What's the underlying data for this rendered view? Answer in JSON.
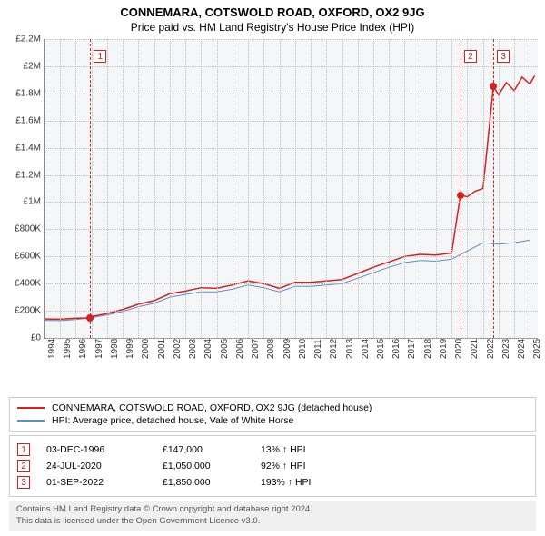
{
  "title": "CONNEMARA, COTSWOLD ROAD, OXFORD, OX2 9JG",
  "subtitle": "Price paid vs. HM Land Registry's House Price Index (HPI)",
  "chart": {
    "type": "line",
    "background_color": "#f5f6f7",
    "grid_color": "#bbbbbb",
    "axis_color": "#888888",
    "ylim": [
      0,
      2200000
    ],
    "ytick_step": 200000,
    "yticks": [
      "£0",
      "£200K",
      "£400K",
      "£600K",
      "£800K",
      "£1M",
      "£1.2M",
      "£1.4M",
      "£1.6M",
      "£1.8M",
      "£2M",
      "£2.2M"
    ],
    "xlim": [
      1994,
      2025.5
    ],
    "xticks": [
      1994,
      1995,
      1996,
      1997,
      1998,
      1999,
      2000,
      2001,
      2002,
      2003,
      2004,
      2005,
      2006,
      2007,
      2008,
      2009,
      2010,
      2011,
      2012,
      2013,
      2014,
      2015,
      2016,
      2017,
      2018,
      2019,
      2020,
      2021,
      2022,
      2023,
      2024,
      2025
    ],
    "series": [
      {
        "name": "hpi",
        "label": "HPI: Average price, detached house, Vale of White Horse",
        "color": "#5b8fc7",
        "width": 1,
        "points": [
          [
            1994,
            130000
          ],
          [
            1995,
            128000
          ],
          [
            1996,
            135000
          ],
          [
            1997,
            150000
          ],
          [
            1998,
            170000
          ],
          [
            1999,
            195000
          ],
          [
            2000,
            230000
          ],
          [
            2001,
            255000
          ],
          [
            2002,
            300000
          ],
          [
            2003,
            320000
          ],
          [
            2004,
            340000
          ],
          [
            2005,
            340000
          ],
          [
            2006,
            360000
          ],
          [
            2007,
            390000
          ],
          [
            2008,
            370000
          ],
          [
            2009,
            340000
          ],
          [
            2010,
            380000
          ],
          [
            2011,
            380000
          ],
          [
            2012,
            390000
          ],
          [
            2013,
            400000
          ],
          [
            2014,
            440000
          ],
          [
            2015,
            480000
          ],
          [
            2016,
            520000
          ],
          [
            2017,
            555000
          ],
          [
            2018,
            570000
          ],
          [
            2019,
            565000
          ],
          [
            2020,
            580000
          ],
          [
            2021,
            640000
          ],
          [
            2022,
            700000
          ],
          [
            2023,
            690000
          ],
          [
            2024,
            700000
          ],
          [
            2025,
            720000
          ]
        ]
      },
      {
        "name": "property",
        "label": "CONNEMARA, COTSWOLD ROAD, OXFORD, OX2 9JG (detached house)",
        "color": "#d91e1e",
        "width": 1.5,
        "points": [
          [
            1994,
            140000
          ],
          [
            1995,
            138000
          ],
          [
            1996,
            145000
          ],
          [
            1996.92,
            147000
          ],
          [
            1997,
            158000
          ],
          [
            1998,
            180000
          ],
          [
            1999,
            210000
          ],
          [
            2000,
            248000
          ],
          [
            2001,
            275000
          ],
          [
            2002,
            325000
          ],
          [
            2003,
            345000
          ],
          [
            2004,
            370000
          ],
          [
            2005,
            365000
          ],
          [
            2006,
            390000
          ],
          [
            2007,
            420000
          ],
          [
            2008,
            400000
          ],
          [
            2009,
            365000
          ],
          [
            2010,
            410000
          ],
          [
            2011,
            410000
          ],
          [
            2012,
            420000
          ],
          [
            2013,
            430000
          ],
          [
            2014,
            475000
          ],
          [
            2015,
            520000
          ],
          [
            2016,
            560000
          ],
          [
            2017,
            600000
          ],
          [
            2018,
            615000
          ],
          [
            2019,
            610000
          ],
          [
            2020,
            625000
          ],
          [
            2020.56,
            1050000
          ],
          [
            2021,
            1040000
          ],
          [
            2021.5,
            1080000
          ],
          [
            2022,
            1100000
          ],
          [
            2022.67,
            1850000
          ],
          [
            2023,
            1790000
          ],
          [
            2023.5,
            1880000
          ],
          [
            2024,
            1820000
          ],
          [
            2024.5,
            1920000
          ],
          [
            2025,
            1870000
          ],
          [
            2025.3,
            1930000
          ]
        ]
      }
    ],
    "markers": [
      {
        "n": "1",
        "x": 1996.92,
        "y": 147000,
        "color": "#d91e1e",
        "box_top": 12
      },
      {
        "n": "2",
        "x": 2020.56,
        "y": 1050000,
        "color": "#d91e1e",
        "box_top": 12
      },
      {
        "n": "3",
        "x": 2022.67,
        "y": 1850000,
        "color": "#d91e1e",
        "box_top": 12
      }
    ]
  },
  "legend": [
    {
      "color": "#d91e1e",
      "label": "CONNEMARA, COTSWOLD ROAD, OXFORD, OX2 9JG (detached house)"
    },
    {
      "color": "#5b8fc7",
      "label": "HPI: Average price, detached house, Vale of White Horse"
    }
  ],
  "transactions": [
    {
      "n": "1",
      "color": "#d91e1e",
      "date": "03-DEC-1996",
      "price": "£147,000",
      "pct": "13% ↑ HPI"
    },
    {
      "n": "2",
      "color": "#d91e1e",
      "date": "24-JUL-2020",
      "price": "£1,050,000",
      "pct": "92% ↑ HPI"
    },
    {
      "n": "3",
      "color": "#d91e1e",
      "date": "01-SEP-2022",
      "price": "£1,850,000",
      "pct": "193% ↑ HPI"
    }
  ],
  "footer1": "Contains HM Land Registry data © Crown copyright and database right 2024.",
  "footer2": "This data is licensed under the Open Government Licence v3.0."
}
